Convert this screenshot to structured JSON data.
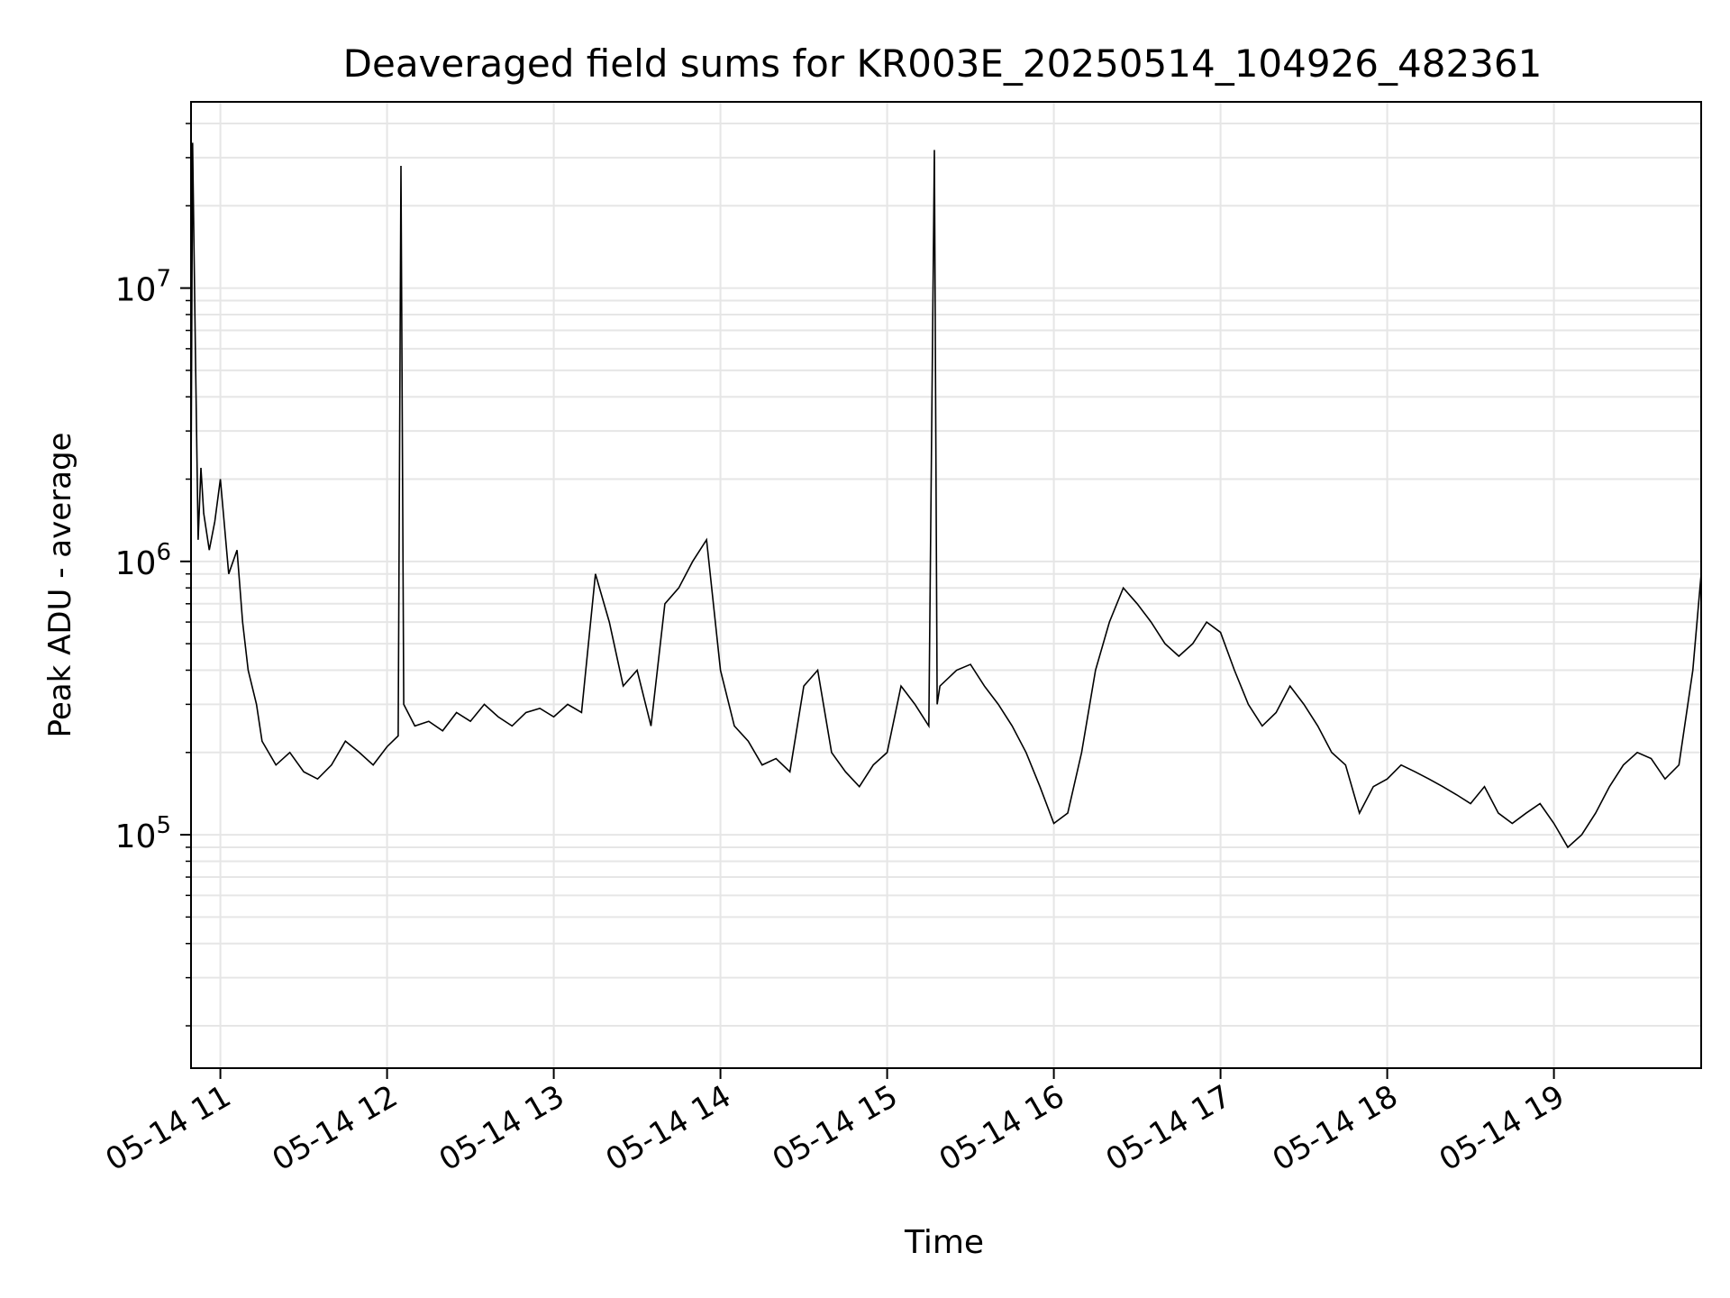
{
  "chart_data": {
    "type": "line",
    "title": "Deaveraged field sums for KR003E_20250514_104926_482361",
    "xlabel": "Time",
    "ylabel": "Peak ADU - average",
    "yscale": "log",
    "grid": true,
    "legend": "none",
    "line_color": "#000000",
    "xlim": [
      "2025-05-14T10:49:26",
      "2025-05-14T19:53:00"
    ],
    "ylim": [
      14000,
      48000000
    ],
    "x_ticks": [
      {
        "value": "2025-05-14T11:00:00",
        "label": "05-14 11"
      },
      {
        "value": "2025-05-14T12:00:00",
        "label": "05-14 12"
      },
      {
        "value": "2025-05-14T13:00:00",
        "label": "05-14 13"
      },
      {
        "value": "2025-05-14T14:00:00",
        "label": "05-14 14"
      },
      {
        "value": "2025-05-14T15:00:00",
        "label": "05-14 15"
      },
      {
        "value": "2025-05-14T16:00:00",
        "label": "05-14 16"
      },
      {
        "value": "2025-05-14T17:00:00",
        "label": "05-14 17"
      },
      {
        "value": "2025-05-14T18:00:00",
        "label": "05-14 18"
      },
      {
        "value": "2025-05-14T19:00:00",
        "label": "05-14 19"
      }
    ],
    "y_ticks": [
      {
        "value": 100000,
        "base": "10",
        "exp": "5"
      },
      {
        "value": 1000000,
        "base": "10",
        "exp": "6"
      },
      {
        "value": 10000000,
        "base": "10",
        "exp": "7"
      }
    ],
    "series": [
      {
        "x": [
          "2025-05-14T10:49:26",
          "2025-05-14T10:50:00",
          "2025-05-14T10:51:00",
          "2025-05-14T10:52:00",
          "2025-05-14T10:53:00",
          "2025-05-14T10:54:00",
          "2025-05-14T10:56:00",
          "2025-05-14T10:58:00",
          "2025-05-14T11:00:00",
          "2025-05-14T11:03:00",
          "2025-05-14T11:06:00",
          "2025-05-14T11:08:00",
          "2025-05-14T11:10:00",
          "2025-05-14T11:13:00",
          "2025-05-14T11:15:00",
          "2025-05-14T11:20:00",
          "2025-05-14T11:25:00",
          "2025-05-14T11:30:00",
          "2025-05-14T11:35:00",
          "2025-05-14T11:40:00",
          "2025-05-14T11:45:00",
          "2025-05-14T11:50:00",
          "2025-05-14T11:55:00",
          "2025-05-14T12:00:00",
          "2025-05-14T12:04:00",
          "2025-05-14T12:05:00",
          "2025-05-14T12:06:00",
          "2025-05-14T12:10:00",
          "2025-05-14T12:15:00",
          "2025-05-14T12:20:00",
          "2025-05-14T12:25:00",
          "2025-05-14T12:30:00",
          "2025-05-14T12:35:00",
          "2025-05-14T12:40:00",
          "2025-05-14T12:45:00",
          "2025-05-14T12:50:00",
          "2025-05-14T12:55:00",
          "2025-05-14T13:00:00",
          "2025-05-14T13:05:00",
          "2025-05-14T13:10:00",
          "2025-05-14T13:15:00",
          "2025-05-14T13:20:00",
          "2025-05-14T13:25:00",
          "2025-05-14T13:30:00",
          "2025-05-14T13:35:00",
          "2025-05-14T13:40:00",
          "2025-05-14T13:45:00",
          "2025-05-14T13:50:00",
          "2025-05-14T13:55:00",
          "2025-05-14T14:00:00",
          "2025-05-14T14:05:00",
          "2025-05-14T14:10:00",
          "2025-05-14T14:15:00",
          "2025-05-14T14:20:00",
          "2025-05-14T14:25:00",
          "2025-05-14T14:30:00",
          "2025-05-14T14:35:00",
          "2025-05-14T14:40:00",
          "2025-05-14T14:45:00",
          "2025-05-14T14:50:00",
          "2025-05-14T14:55:00",
          "2025-05-14T15:00:00",
          "2025-05-14T15:05:00",
          "2025-05-14T15:10:00",
          "2025-05-14T15:15:00",
          "2025-05-14T15:17:00",
          "2025-05-14T15:18:00",
          "2025-05-14T15:19:00",
          "2025-05-14T15:25:00",
          "2025-05-14T15:30:00",
          "2025-05-14T15:35:00",
          "2025-05-14T15:40:00",
          "2025-05-14T15:45:00",
          "2025-05-14T15:50:00",
          "2025-05-14T15:55:00",
          "2025-05-14T16:00:00",
          "2025-05-14T16:05:00",
          "2025-05-14T16:10:00",
          "2025-05-14T16:15:00",
          "2025-05-14T16:20:00",
          "2025-05-14T16:25:00",
          "2025-05-14T16:30:00",
          "2025-05-14T16:35:00",
          "2025-05-14T16:40:00",
          "2025-05-14T16:45:00",
          "2025-05-14T16:50:00",
          "2025-05-14T16:55:00",
          "2025-05-14T17:00:00",
          "2025-05-14T17:05:00",
          "2025-05-14T17:10:00",
          "2025-05-14T17:15:00",
          "2025-05-14T17:20:00",
          "2025-05-14T17:25:00",
          "2025-05-14T17:30:00",
          "2025-05-14T17:35:00",
          "2025-05-14T17:40:00",
          "2025-05-14T17:45:00",
          "2025-05-14T17:50:00",
          "2025-05-14T17:55:00",
          "2025-05-14T18:00:00",
          "2025-05-14T18:05:00",
          "2025-05-14T18:10:00",
          "2025-05-14T18:15:00",
          "2025-05-14T18:20:00",
          "2025-05-14T18:25:00",
          "2025-05-14T18:30:00",
          "2025-05-14T18:35:00",
          "2025-05-14T18:40:00",
          "2025-05-14T18:45:00",
          "2025-05-14T18:50:00",
          "2025-05-14T18:55:00",
          "2025-05-14T19:00:00",
          "2025-05-14T19:05:00",
          "2025-05-14T19:10:00",
          "2025-05-14T19:15:00",
          "2025-05-14T19:20:00",
          "2025-05-14T19:25:00",
          "2025-05-14T19:30:00",
          "2025-05-14T19:35:00",
          "2025-05-14T19:40:00",
          "2025-05-14T19:45:00",
          "2025-05-14T19:50:00",
          "2025-05-14T19:53:00"
        ],
        "y": [
          1800000,
          34000000,
          6000000,
          1200000,
          2200000,
          1500000,
          1100000,
          1400000,
          2000000,
          900000,
          1100000,
          600000,
          400000,
          300000,
          220000,
          180000,
          200000,
          170000,
          160000,
          180000,
          220000,
          200000,
          180000,
          210000,
          230000,
          28000000,
          300000,
          250000,
          260000,
          240000,
          280000,
          260000,
          300000,
          270000,
          250000,
          280000,
          290000,
          270000,
          300000,
          280000,
          900000,
          600000,
          350000,
          400000,
          250000,
          700000,
          800000,
          1000000,
          1200000,
          400000,
          250000,
          220000,
          180000,
          190000,
          170000,
          350000,
          400000,
          200000,
          170000,
          150000,
          180000,
          200000,
          350000,
          300000,
          250000,
          32000000,
          300000,
          350000,
          400000,
          420000,
          350000,
          300000,
          250000,
          200000,
          150000,
          110000,
          120000,
          200000,
          400000,
          600000,
          800000,
          700000,
          600000,
          500000,
          450000,
          500000,
          600000,
          550000,
          400000,
          300000,
          250000,
          280000,
          350000,
          300000,
          250000,
          200000,
          180000,
          120000,
          150000,
          160000,
          180000,
          170000,
          160000,
          150000,
          140000,
          130000,
          150000,
          120000,
          110000,
          120000,
          130000,
          110000,
          90000,
          100000,
          120000,
          150000,
          180000,
          200000,
          190000,
          160000,
          180000,
          400000,
          900000
        ]
      }
    ]
  }
}
